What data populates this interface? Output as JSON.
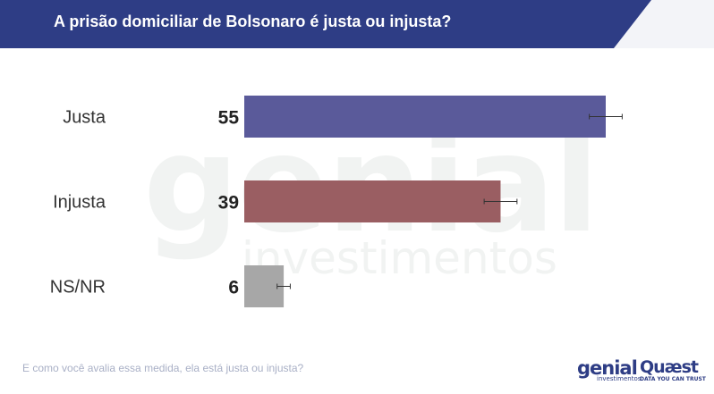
{
  "header": {
    "title": "A prisão domiciliar de Bolsonaro é justa ou injusta?"
  },
  "chart_data": {
    "type": "bar",
    "orientation": "horizontal",
    "title": "A prisão domiciliar de Bolsonaro é justa ou injusta?",
    "categories": [
      "Justa",
      "Injusta",
      "NS/NR"
    ],
    "values": [
      55,
      39,
      6
    ],
    "error_margin": [
      2.5,
      2.5,
      1.0
    ],
    "colors": [
      "#5a5a9a",
      "#9a5e62",
      "#a7a7a7"
    ],
    "xlim": [
      0,
      100
    ],
    "grid": false,
    "legend": "none"
  },
  "footnote": "E como você avalia essa medida, ela está justa ou injusta?",
  "watermark": {
    "line1": "genial",
    "line2": "investimentos"
  },
  "logos": {
    "genial_main": "genial",
    "genial_sub": "investimentos",
    "quaest_main": "Quæst",
    "quaest_sub": "DATA YOU CAN TRUST"
  },
  "colors": {
    "header_bg": "#2e3d85",
    "brand": "#2e3d85"
  }
}
